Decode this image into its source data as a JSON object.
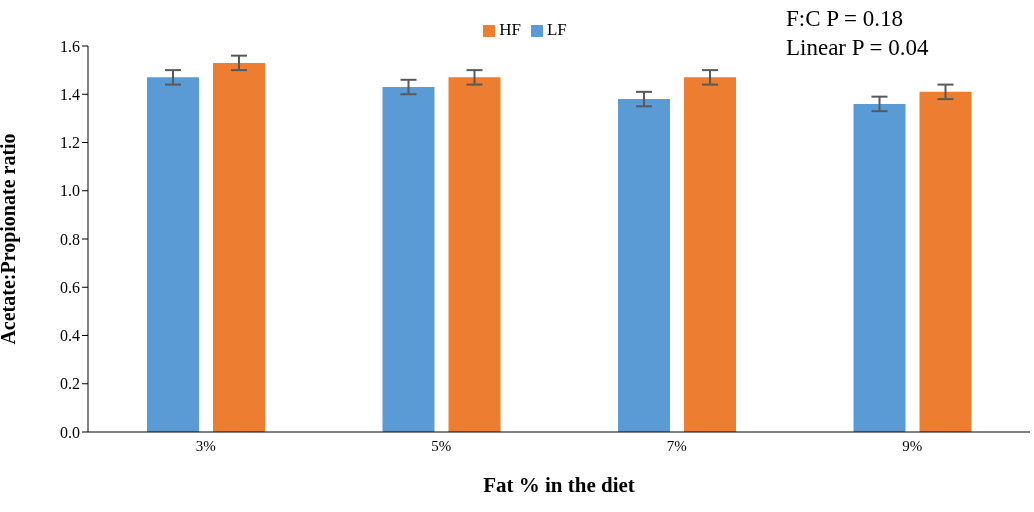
{
  "chart_data": {
    "type": "bar",
    "xlabel": "Fat % in the diet",
    "ylabel": "Acetate:Propionate ratio",
    "categories": [
      "3%",
      "5%",
      "7%",
      "9%"
    ],
    "series": [
      {
        "name": "LF",
        "color": "#5b9bd5",
        "values": [
          1.47,
          1.43,
          1.38,
          1.36
        ],
        "errors": [
          0.03,
          0.03,
          0.03,
          0.03
        ]
      },
      {
        "name": "HF",
        "color": "#ed7d31",
        "values": [
          1.53,
          1.47,
          1.47,
          1.41
        ],
        "errors": [
          0.03,
          0.03,
          0.03,
          0.03
        ]
      }
    ],
    "ylim": [
      0,
      1.6
    ],
    "yticks": [
      {
        "value": 0,
        "label": "0.0"
      },
      {
        "value": 0.2,
        "label": "0.2"
      },
      {
        "value": 0.4,
        "label": "0.4"
      },
      {
        "value": 0.6,
        "label": "0.6"
      },
      {
        "value": 0.8,
        "label": "0.8"
      },
      {
        "value": 1,
        "label": "1.0"
      },
      {
        "value": 1.2,
        "label": "1.2"
      },
      {
        "value": 1.4,
        "label": "1.4"
      },
      {
        "value": 1.6,
        "label": "1.6"
      }
    ],
    "grid": false,
    "legend": "top",
    "annotations": [
      "F:C P = 0.18",
      "Linear P = 0.04"
    ]
  }
}
